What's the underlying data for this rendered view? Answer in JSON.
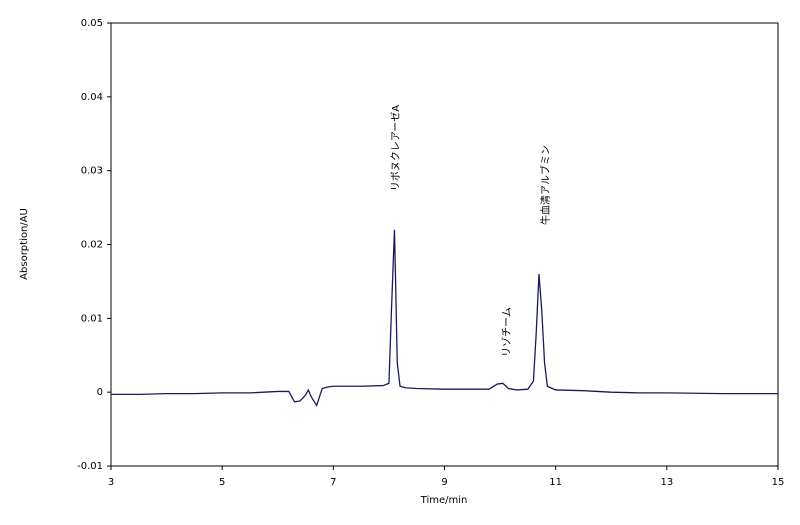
{
  "chart_data": {
    "type": "line",
    "x_label": "Time/min",
    "y_label": "Absorption/AU",
    "x": [
      3,
      3.5,
      4,
      4.5,
      5,
      5.5,
      6,
      6.2,
      6.3,
      6.4,
      6.5,
      6.55,
      6.6,
      6.7,
      6.8,
      6.9,
      7,
      7.5,
      7.9,
      8.0,
      8.05,
      8.1,
      8.12,
      8.15,
      8.2,
      8.3,
      8.5,
      9,
      9.5,
      9.8,
      9.95,
      10.05,
      10.15,
      10.3,
      10.5,
      10.6,
      10.65,
      10.7,
      10.75,
      10.8,
      10.85,
      11,
      11.5,
      12,
      12.5,
      13,
      14,
      15
    ],
    "series": [
      {
        "name": "chromatogram",
        "color": "#1a1a5e",
        "values": [
          -0.0003,
          -0.0003,
          -0.0002,
          -0.0002,
          -0.0001,
          -0.0001,
          0.0001,
          0.0001,
          -0.0013,
          -0.0012,
          -0.0004,
          0.0003,
          -0.0006,
          -0.0018,
          0.0005,
          0.0007,
          0.0008,
          0.0008,
          0.0009,
          0.0012,
          0.012,
          0.022,
          0.015,
          0.004,
          0.0008,
          0.0006,
          0.0005,
          0.0004,
          0.0004,
          0.0004,
          0.0011,
          0.0012,
          0.0005,
          0.0003,
          0.0004,
          0.0015,
          0.008,
          0.016,
          0.011,
          0.004,
          0.0008,
          0.0003,
          0.0002,
          0,
          -0.0001,
          -0.0001,
          -0.0002,
          -0.0002
        ]
      }
    ],
    "annotations": [
      "リボヌクレアーゼA",
      "リゾチーム",
      "牛血清アルブミン"
    ],
    "xlim": [
      3,
      15
    ],
    "xticks": [
      3,
      5,
      7,
      9,
      11,
      13,
      15
    ],
    "ylim": [
      -0.01,
      0.05
    ],
    "yticks": [
      -0.01,
      0,
      0.01,
      0.02,
      0.03,
      0.04,
      0.05
    ],
    "grid": false
  }
}
